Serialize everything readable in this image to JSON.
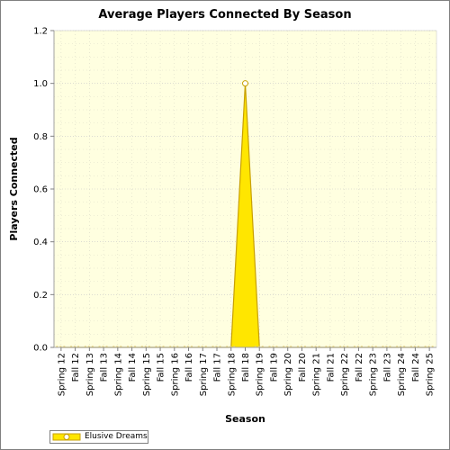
{
  "chart_data": {
    "type": "area",
    "title": "Average Players Connected By Season",
    "xlabel": "Season",
    "ylabel": "Players Connected",
    "ylim": [
      0,
      1.2
    ],
    "yticks": [
      "0.0",
      "0.2",
      "0.4",
      "0.6",
      "0.8",
      "1.0",
      "1.2"
    ],
    "grid": true,
    "legend_position": "bottom-left",
    "categories": [
      "Spring 12",
      "Fall 12",
      "Spring 13",
      "Fall 13",
      "Spring 14",
      "Fall 14",
      "Spring 15",
      "Fall 15",
      "Spring 16",
      "Fall 16",
      "Spring 17",
      "Fall 17",
      "Spring 18",
      "Fall 18",
      "Spring 19",
      "Fall 19",
      "Spring 20",
      "Fall 20",
      "Spring 21",
      "Fall 21",
      "Spring 22",
      "Fall 22",
      "Spring 23",
      "Fall 23",
      "Spring 24",
      "Fall 24",
      "Spring 25"
    ],
    "series": [
      {
        "name": "Elusive Dreams",
        "values": [
          0,
          0,
          0,
          0,
          0,
          0,
          0,
          0,
          0,
          0,
          0,
          0,
          0,
          1,
          0,
          0,
          0,
          0,
          0,
          0,
          0,
          0,
          0,
          0,
          0,
          0,
          0
        ],
        "color": "#FFE600",
        "outline": "#C8A000"
      }
    ]
  }
}
